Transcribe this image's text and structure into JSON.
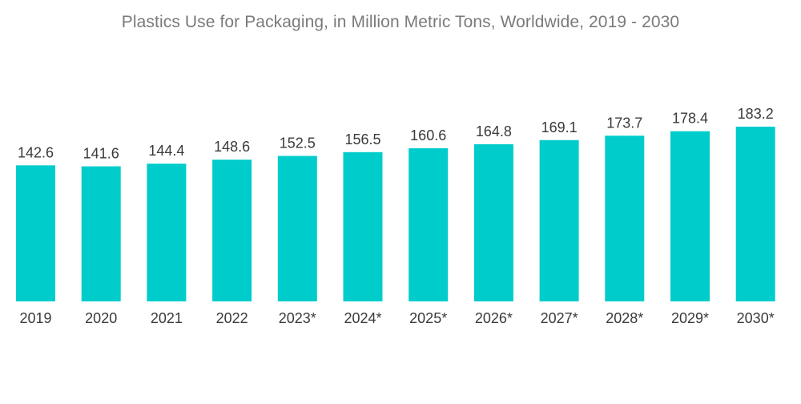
{
  "chart_data": {
    "type": "bar",
    "title": "Plastics Use for Packaging, in Million Metric Tons, Worldwide, 2019 - 2030",
    "xlabel": "",
    "ylabel": "",
    "categories": [
      "2019",
      "2020",
      "2021",
      "2022",
      "2023*",
      "2024*",
      "2025*",
      "2026*",
      "2027*",
      "2028*",
      "2029*",
      "2030*"
    ],
    "values": [
      142.6,
      141.6,
      144.4,
      148.6,
      152.5,
      156.5,
      160.6,
      164.8,
      169.1,
      173.7,
      178.4,
      183.2
    ],
    "value_labels": [
      "142.6",
      "141.6",
      "144.4",
      "148.6",
      "152.5",
      "156.5",
      "160.6",
      "164.8",
      "169.1",
      "173.7",
      "178.4",
      "183.2"
    ],
    "ylim": [
      0,
      183.2
    ],
    "grid": false,
    "legend": "none",
    "colors": {
      "bar": "#00CCCC",
      "title": "#7a7a7a",
      "text": "#3a3a3a"
    }
  }
}
